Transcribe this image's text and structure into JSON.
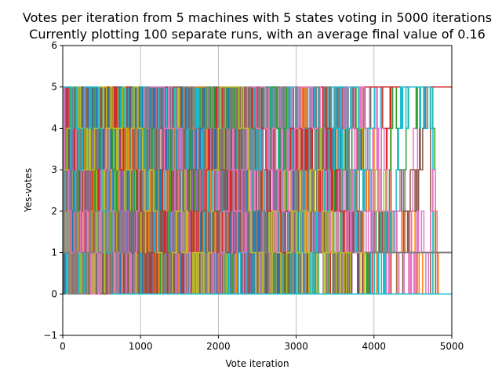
{
  "chart_data": {
    "type": "line",
    "title": "Votes per iteration from 5 machines with 5 states voting in 5000 iterations",
    "subtitle": "Currently plotting 100 separate runs, with an average final value of 0.16",
    "xlabel": "Vote iteration",
    "ylabel": "Yes-votes",
    "xlim": [
      0,
      5000
    ],
    "ylim": [
      -1,
      6
    ],
    "x_ticks": [
      0,
      1000,
      2000,
      3000,
      4000,
      5000
    ],
    "y_ticks": [
      -1,
      0,
      1,
      2,
      3,
      4,
      5,
      6
    ],
    "grid": "vertical-x-only",
    "legend": "none",
    "value_levels": [
      0,
      1,
      2,
      3,
      4,
      5
    ],
    "series_count": 100,
    "average_final_value": 0.16,
    "colors": [
      "#1f77b4",
      "#ff7f0e",
      "#2ca02c",
      "#d62728",
      "#9467bd",
      "#8c564b",
      "#e377c2",
      "#7f7f7f",
      "#bcbd22",
      "#17becf"
    ]
  }
}
